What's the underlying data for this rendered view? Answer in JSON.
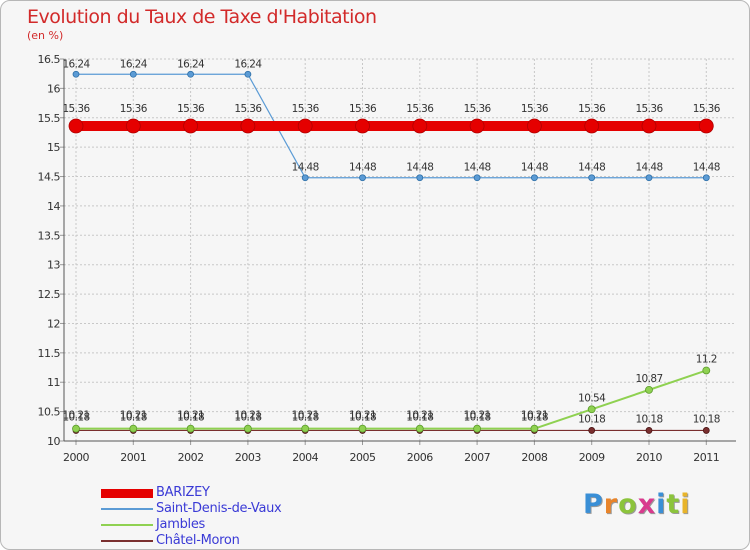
{
  "header": {
    "title": "Evolution du Taux de Taxe d'Habitation",
    "unit": "(en %)"
  },
  "logo": {
    "text": "Proxiti"
  },
  "colors": {
    "background": "#f6f6f6",
    "grid": "#c8c8c8",
    "title": "#d22a2a",
    "legend_text": "#3a3ad6"
  },
  "chart_data": {
    "type": "line",
    "title": "Evolution du Taux de Taxe d'Habitation",
    "ylabel": "(en %)",
    "xlabel": "",
    "x": [
      "2000",
      "2001",
      "2002",
      "2003",
      "2004",
      "2005",
      "2006",
      "2007",
      "2008",
      "2009",
      "2010",
      "2011"
    ],
    "ylim": [
      10,
      16.5
    ],
    "yticks": [
      "10",
      "10.5",
      "11",
      "11.5",
      "12",
      "12.5",
      "13",
      "13.5",
      "14",
      "14.5",
      "15",
      "15.5",
      "16",
      "16.5"
    ],
    "grid": true,
    "legend_position": "bottom-left",
    "series": [
      {
        "name": "BARIZEY",
        "color": "#e50000",
        "values": [
          15.36,
          15.36,
          15.36,
          15.36,
          15.36,
          15.36,
          15.36,
          15.36,
          15.36,
          15.36,
          15.36,
          15.36
        ],
        "labels": [
          "15.36",
          "15.36",
          "15.36",
          "15.36",
          "15.36",
          "15.36",
          "15.36",
          "15.36",
          "15.36",
          "15.36",
          "15.36",
          "15.36"
        ]
      },
      {
        "name": "Saint-Denis-de-Vaux",
        "color": "#5b9bd5",
        "values": [
          16.24,
          16.24,
          16.24,
          16.24,
          14.48,
          14.48,
          14.48,
          14.48,
          14.48,
          14.48,
          14.48,
          14.48
        ],
        "labels": [
          "16.24",
          "16.24",
          "16.24",
          "16.24",
          "14.48",
          "14.48",
          "14.48",
          "14.48",
          "14.48",
          "14.48",
          "14.48",
          "14.48"
        ]
      },
      {
        "name": "Jambles",
        "color": "#8fd151",
        "values": [
          10.21,
          10.21,
          10.21,
          10.21,
          10.21,
          10.21,
          10.21,
          10.21,
          10.21,
          10.54,
          10.87,
          11.2
        ],
        "labels": [
          "10.21",
          "10.21",
          "10.21",
          "10.21",
          "10.21",
          "10.21",
          "10.21",
          "10.21",
          "10.21",
          "10.54",
          "10.87",
          "11.2"
        ]
      },
      {
        "name": "Châtel-Moron",
        "color": "#7a2f2f",
        "values": [
          10.18,
          10.18,
          10.18,
          10.18,
          10.18,
          10.18,
          10.18,
          10.18,
          10.18,
          10.18,
          10.18,
          10.18
        ],
        "labels": [
          "10.18",
          "10.18",
          "10.18",
          "10.18",
          "10.18",
          "10.18",
          "10.18",
          "10.18",
          "10.18",
          "10.18",
          "10.18",
          "10.18"
        ]
      }
    ]
  }
}
